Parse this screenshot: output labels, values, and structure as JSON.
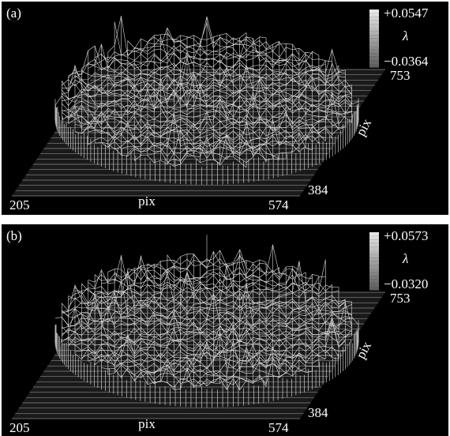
{
  "panels": [
    {
      "label": "(a)",
      "colorbar": {
        "max": "+0.0547",
        "symbol": "λ",
        "min": "−0.0364"
      },
      "x_axis": {
        "label": "pix",
        "min": "205",
        "max": "574"
      },
      "y_axis": {
        "label": "pix",
        "min": "384",
        "max": "753"
      }
    },
    {
      "label": "(b)",
      "colorbar": {
        "max": "+0.0573",
        "symbol": "λ",
        "min": "−0.0320"
      },
      "x_axis": {
        "label": "pix",
        "min": "205",
        "max": "574"
      },
      "y_axis": {
        "label": "pix",
        "min": "384",
        "max": "753"
      }
    }
  ]
}
